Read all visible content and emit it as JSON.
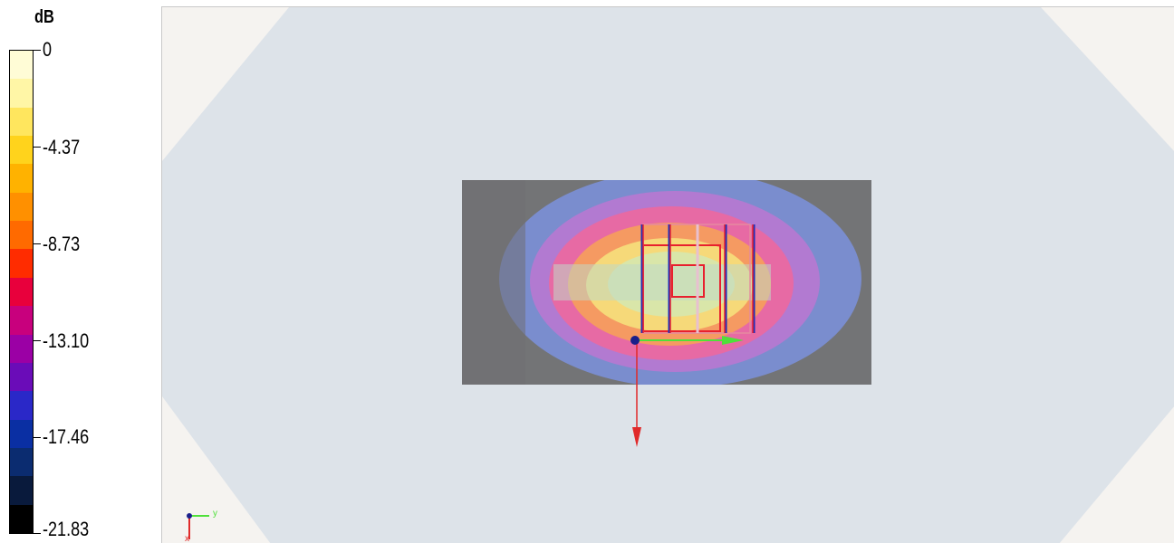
{
  "legend": {
    "unit": "dB",
    "ticks": [
      "0",
      "-4.37",
      "-8.73",
      "-13.10",
      "-17.46",
      "-21.83"
    ],
    "colors": [
      "#fffcd6",
      "#fff6a6",
      "#ffe65e",
      "#ffd31c",
      "#ffb200",
      "#ff9000",
      "#ff6a00",
      "#ff2c00",
      "#e8003c",
      "#c8007d",
      "#9b00a5",
      "#6a0cb8",
      "#2a28c8",
      "#0a2fa3",
      "#0b2c70",
      "#091a3c",
      "#000000"
    ]
  },
  "viewport": {
    "background": "#f5f3f0",
    "field_colors": {
      "outer": "#d8dfe8",
      "plate": "#737476",
      "blue": "#7b8fd6",
      "purple": "#b27ad1",
      "magenta": "#e76aa4",
      "orange": "#f59a62",
      "yellow": "#f6d979",
      "core": "#d9e6a9",
      "band": "#bfd9c7"
    },
    "axis_x_color": "#e02a2a",
    "axis_y_color": "#4fe03a",
    "triad_labels": [
      "y",
      "x"
    ]
  }
}
